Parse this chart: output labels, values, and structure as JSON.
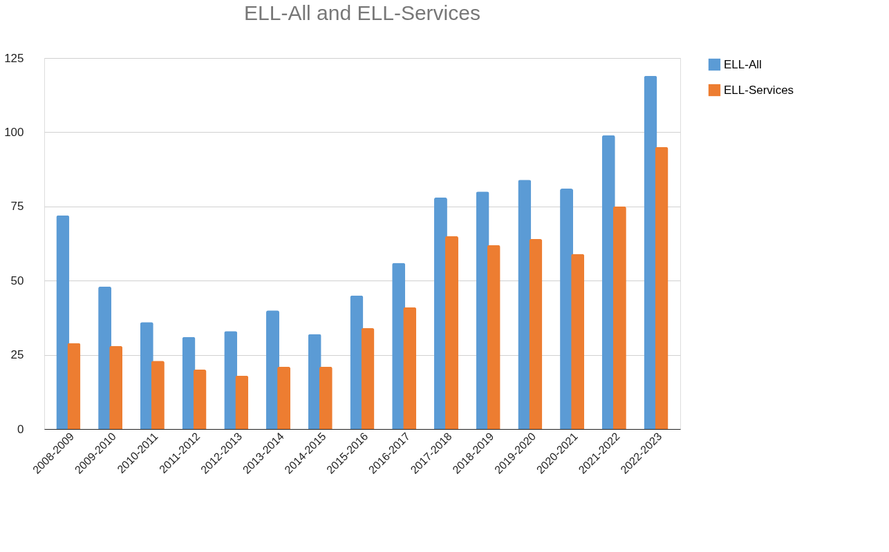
{
  "chart_data": {
    "type": "bar",
    "title": "ELL-All and ELL-Services",
    "categories": [
      "2008-2009",
      "2009-2010",
      "2010-2011",
      "2011-2012",
      "2012-2013",
      "2013-2014",
      "2014-2015",
      "2015-2016",
      "2016-2017",
      "2017-2018",
      "2018-2019",
      "2019-2020",
      "2020-2021",
      "2021-2022",
      "2022-2023"
    ],
    "series": [
      {
        "name": "ELL-All",
        "color": "#5b9bd5",
        "values": [
          72,
          48,
          36,
          31,
          33,
          40,
          32,
          45,
          56,
          78,
          80,
          84,
          81,
          99,
          119
        ]
      },
      {
        "name": "ELL-Services",
        "color": "#ed7d31",
        "values": [
          29,
          28,
          23,
          20,
          18,
          21,
          21,
          34,
          41,
          65,
          62,
          64,
          59,
          75,
          95
        ]
      }
    ],
    "ylim": [
      0,
      125
    ],
    "yticks": [
      0,
      25,
      50,
      75,
      100,
      125
    ],
    "grid": "y",
    "legend": "top right"
  }
}
